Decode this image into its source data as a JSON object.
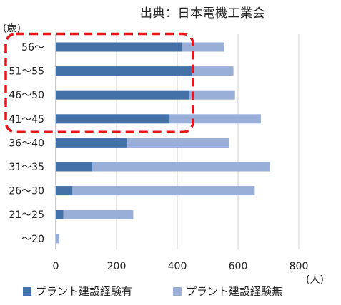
{
  "source_label": "出典：日本電機工業会",
  "chart_data": {
    "type": "bar",
    "orientation": "horizontal",
    "stacked": true,
    "y_unit_label": "(歳)",
    "x_unit_label": "(人)",
    "categories": [
      "56〜",
      "51〜55",
      "46〜50",
      "41〜45",
      "36〜40",
      "31〜35",
      "26〜30",
      "21〜25",
      "〜20"
    ],
    "series": [
      {
        "name": "プラント建設経験有",
        "color": "#4472a8",
        "values": [
          415,
          450,
          440,
          375,
          235,
          120,
          55,
          25,
          0
        ]
      },
      {
        "name": "プラント建設経験無",
        "color": "#99afd8",
        "values": [
          140,
          135,
          150,
          300,
          335,
          585,
          600,
          230,
          12
        ]
      }
    ],
    "xticks": [
      0,
      200,
      400,
      600,
      800
    ],
    "xlim": [
      0,
      800
    ],
    "grid": "vertical",
    "legend_position": "bottom",
    "highlight": {
      "style": "red dashed rounded rectangle",
      "color": "#e8151b",
      "categories": [
        "56〜",
        "51〜55",
        "46〜50",
        "41〜45"
      ]
    }
  }
}
